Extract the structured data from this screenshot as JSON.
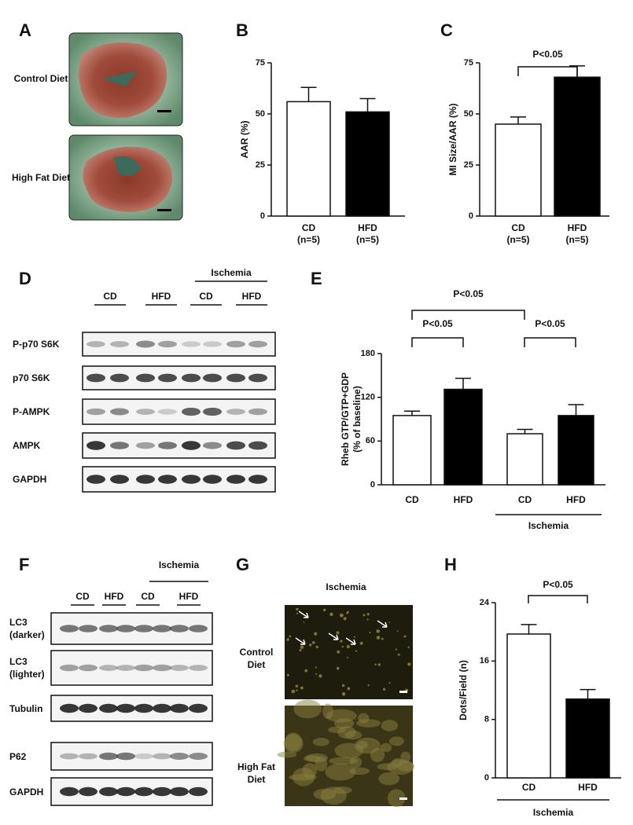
{
  "panels": {
    "A": {
      "label": "A",
      "rows": [
        "Control Diet",
        "High Fat Diet"
      ]
    },
    "D": {
      "label": "D",
      "group": "Ischemia",
      "lanes": [
        "CD",
        "HFD",
        "CD",
        "HFD"
      ],
      "rows": [
        "P-p70 S6K",
        "p70 S6K",
        "P-AMPK",
        "AMPK",
        "GAPDH"
      ]
    },
    "F": {
      "label": "F",
      "group": "Ischemia",
      "lanes": [
        "CD",
        "HFD",
        "CD",
        "HFD"
      ],
      "rows": [
        "LC3 (darker)",
        "LC3 (lighter)",
        "Tubulin",
        "P62",
        "GAPDH"
      ]
    },
    "G": {
      "label": "G",
      "title": "Ischemia",
      "rows": [
        "Control Diet",
        "High Fat Diet"
      ]
    }
  },
  "chart_data": [
    {
      "panel": "B",
      "type": "bar",
      "ylabel": "AAR (%)",
      "categories": [
        "CD",
        "HFD"
      ],
      "category_notes": [
        "(n=5)",
        "(n=5)"
      ],
      "values": [
        56,
        51
      ],
      "errors": [
        7,
        6.5
      ],
      "colors": [
        "#ffffff",
        "#000000"
      ],
      "ylim": [
        0,
        75
      ],
      "yticks": [
        0,
        25,
        50,
        75
      ]
    },
    {
      "panel": "C",
      "type": "bar",
      "ylabel": "MI Size/AAR (%)",
      "categories": [
        "CD",
        "HFD"
      ],
      "category_notes": [
        "(n=5)",
        "(n=5)"
      ],
      "values": [
        45,
        68
      ],
      "errors": [
        3.5,
        5.5
      ],
      "colors": [
        "#ffffff",
        "#000000"
      ],
      "ylim": [
        0,
        75
      ],
      "yticks": [
        0,
        25,
        50,
        75
      ],
      "annotations": [
        "P<0.05"
      ]
    },
    {
      "panel": "E",
      "type": "bar",
      "ylabel": [
        "Rheb GTP/GTP+GDP",
        "(% of baseline)"
      ],
      "categories": [
        "CD",
        "HFD",
        "CD",
        "HFD"
      ],
      "values": [
        95,
        131,
        70,
        95
      ],
      "errors": [
        6,
        15,
        6,
        15
      ],
      "colors": [
        "#ffffff",
        "#000000",
        "#ffffff",
        "#000000"
      ],
      "ylim": [
        0,
        180
      ],
      "yticks": [
        0,
        60,
        120,
        180
      ],
      "group_label": "Ischemia",
      "annotations": [
        "P<0.05",
        "P<0.05",
        "P<0.05"
      ]
    },
    {
      "panel": "H",
      "type": "bar",
      "ylabel": "Dots/Field (n)",
      "categories": [
        "CD",
        "HFD"
      ],
      "values": [
        19.7,
        10.8
      ],
      "errors": [
        1.3,
        1.3
      ],
      "colors": [
        "#ffffff",
        "#000000"
      ],
      "ylim": [
        0,
        24
      ],
      "yticks": [
        0,
        8,
        16,
        24
      ],
      "group_label": "Ischemia",
      "annotations": [
        "P<0.05"
      ]
    }
  ]
}
